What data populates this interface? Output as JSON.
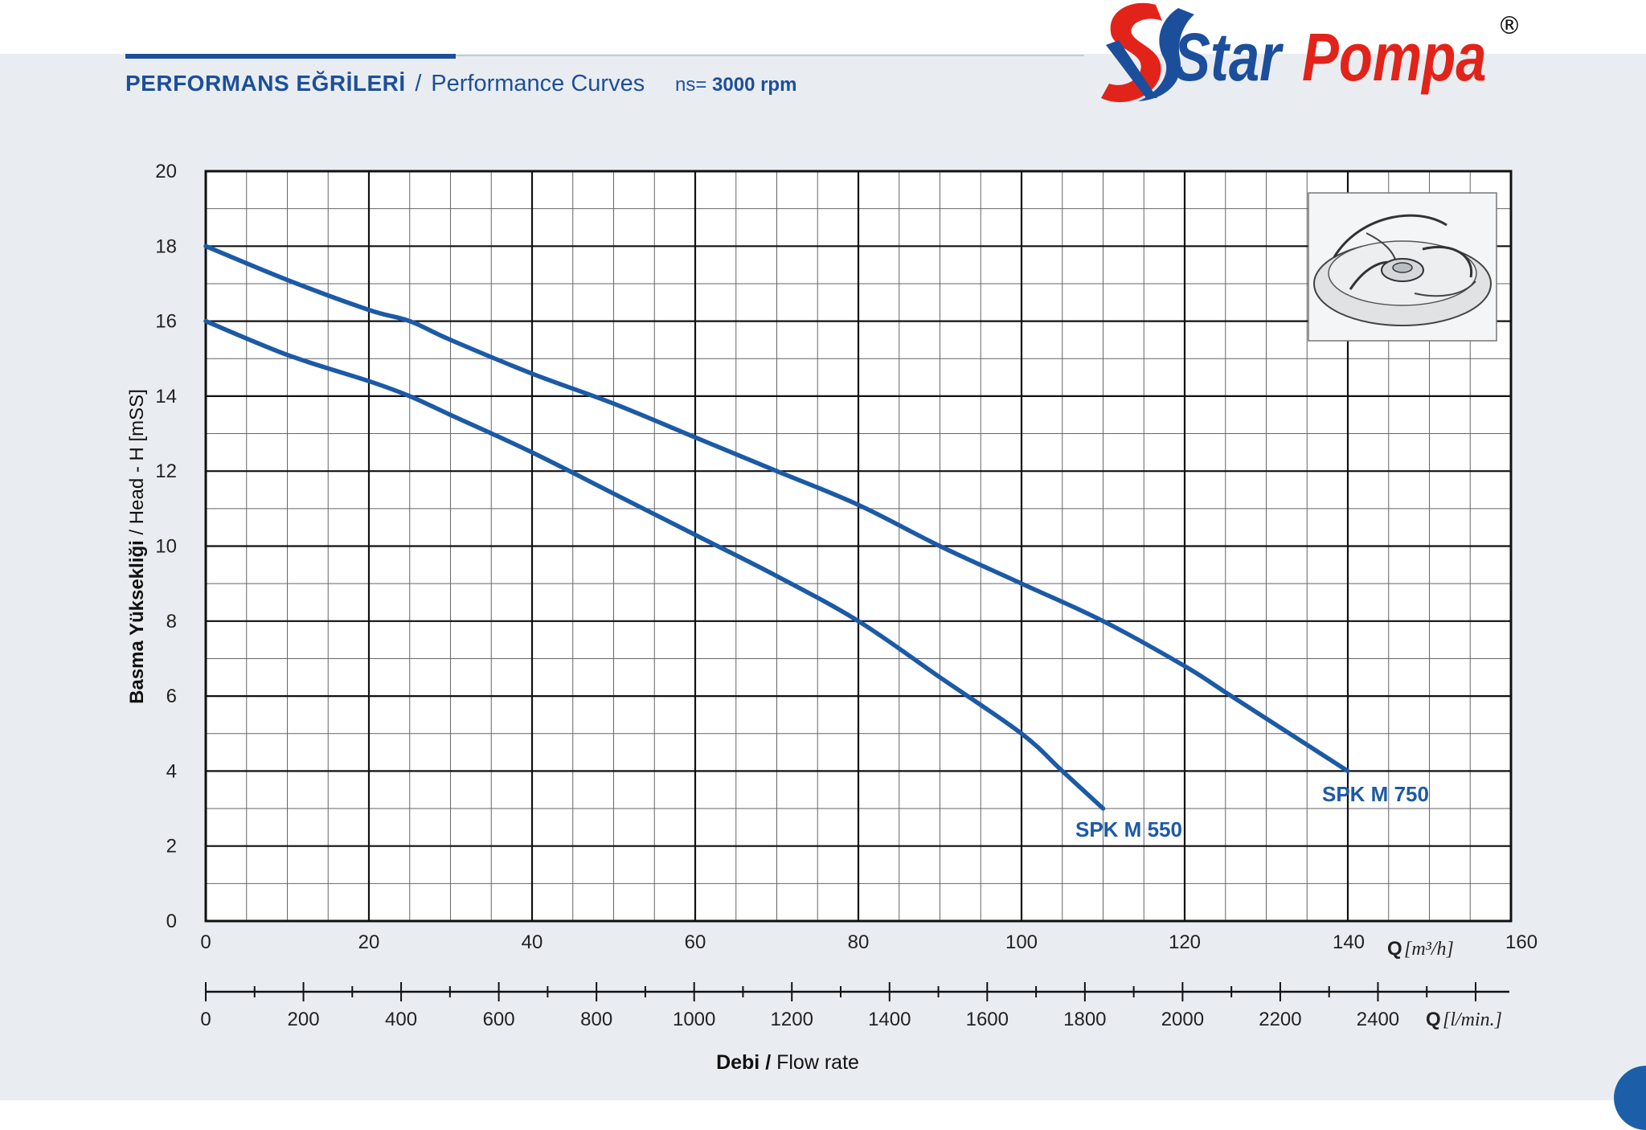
{
  "header": {
    "title_tr": "PERFORMANS EĞRİLERİ",
    "title_sep": "/",
    "title_en": "Performance Curves",
    "speed_prefix": "ns=",
    "speed_value": "3000 rpm"
  },
  "brand": {
    "name_part1": "Star",
    "name_part2": "Pompa",
    "registered_mark": "®",
    "colors": {
      "blue": "#1c4f9b",
      "red": "#e2231a"
    }
  },
  "chart_data": {
    "type": "line",
    "title": "PERFORMANS EĞRİLERİ / Performance Curves",
    "ylabel": "Basma Yüksekliği / Head - H [mSS]",
    "ylabel_parts": {
      "bold": "Basma Yüksekliği",
      "sep": " / ",
      "rest": "Head - H [mSS]"
    },
    "xlabel": "Debi / Flow rate",
    "xlabel_parts": {
      "bold": "Debi",
      "sep": " / ",
      "rest": "Flow rate"
    },
    "x_unit_label": {
      "q": "Q",
      "unit": "[m³/h]"
    },
    "x2_unit_label": {
      "q": "Q",
      "unit": "[l/min.]"
    },
    "xlim": [
      0,
      160
    ],
    "ylim": [
      0,
      20
    ],
    "x_ticks": [
      "0",
      "20",
      "40",
      "60",
      "80",
      "100",
      "120",
      "140",
      "160"
    ],
    "y_ticks": [
      "0",
      "2",
      "4",
      "6",
      "8",
      "10",
      "12",
      "14",
      "16",
      "18",
      "20"
    ],
    "x2_lim": [
      0,
      2600
    ],
    "x2_ticks": [
      "0",
      "200",
      "400",
      "600",
      "800",
      "1000",
      "1200",
      "1400",
      "1600",
      "1800",
      "2000",
      "2200",
      "2400"
    ],
    "grid": true,
    "line_color": "#1c5aa6",
    "series": [
      {
        "name": "SPK M 750",
        "x": [
          0,
          10,
          20,
          25,
          30,
          40,
          50,
          60,
          70,
          80,
          90,
          100,
          110,
          120,
          125,
          130,
          140
        ],
        "y": [
          18,
          17.1,
          16.3,
          16,
          15.5,
          14.6,
          13.8,
          12.9,
          12,
          11.1,
          10,
          9,
          8,
          6.8,
          6.1,
          5.4,
          4
        ]
      },
      {
        "name": "SPK M 550",
        "x": [
          0,
          10,
          20,
          25,
          30,
          40,
          50,
          60,
          70,
          80,
          90,
          100,
          105,
          110
        ],
        "y": [
          16,
          15.1,
          14.4,
          14,
          13.5,
          12.5,
          11.4,
          10.3,
          9.2,
          8,
          6.5,
          5,
          4,
          3
        ]
      }
    ]
  }
}
